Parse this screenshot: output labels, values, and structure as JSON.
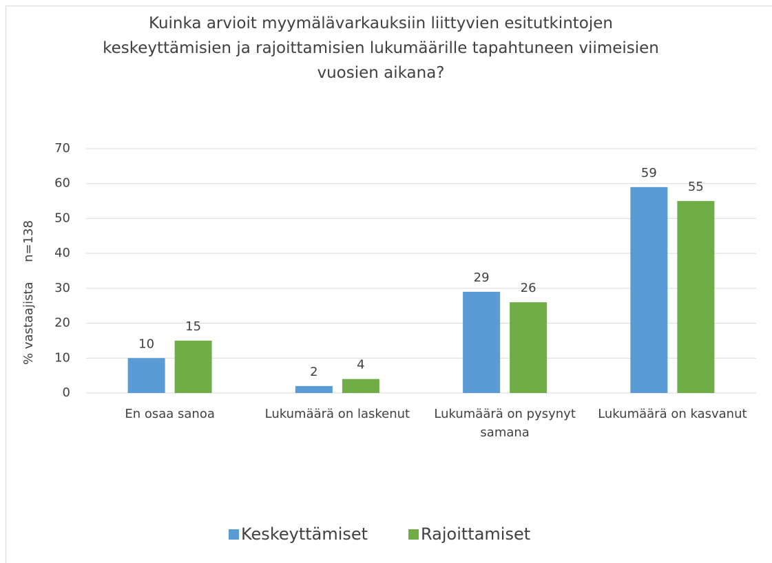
{
  "chart_data": {
    "type": "bar",
    "title": "Kuinka arvioit myymälävarkauksiin liittyvien esitutkintojen keskeyttämisien ja rajoittamisien lukumäärille tapahtuneen viimeisien vuosien aikana?",
    "y_label": "% vastaajista     n=138",
    "categories": [
      "En osaa sanoa",
      "Lukumäärä on laskenut",
      "Lukumäärä on pysynyt samana",
      "Lukumäärä on kasvanut"
    ],
    "series": [
      {
        "name": "Keskeyttämiset",
        "color": "#5b9bd5",
        "values": [
          10,
          2,
          29,
          59
        ]
      },
      {
        "name": "Rajoittamiset",
        "color": "#70ad47",
        "values": [
          15,
          4,
          26,
          55
        ]
      }
    ],
    "ylim": [
      0,
      70
    ],
    "yticks": [
      0,
      10,
      20,
      30,
      40,
      50,
      60,
      70
    ],
    "grid": true,
    "legend": "bottom"
  }
}
